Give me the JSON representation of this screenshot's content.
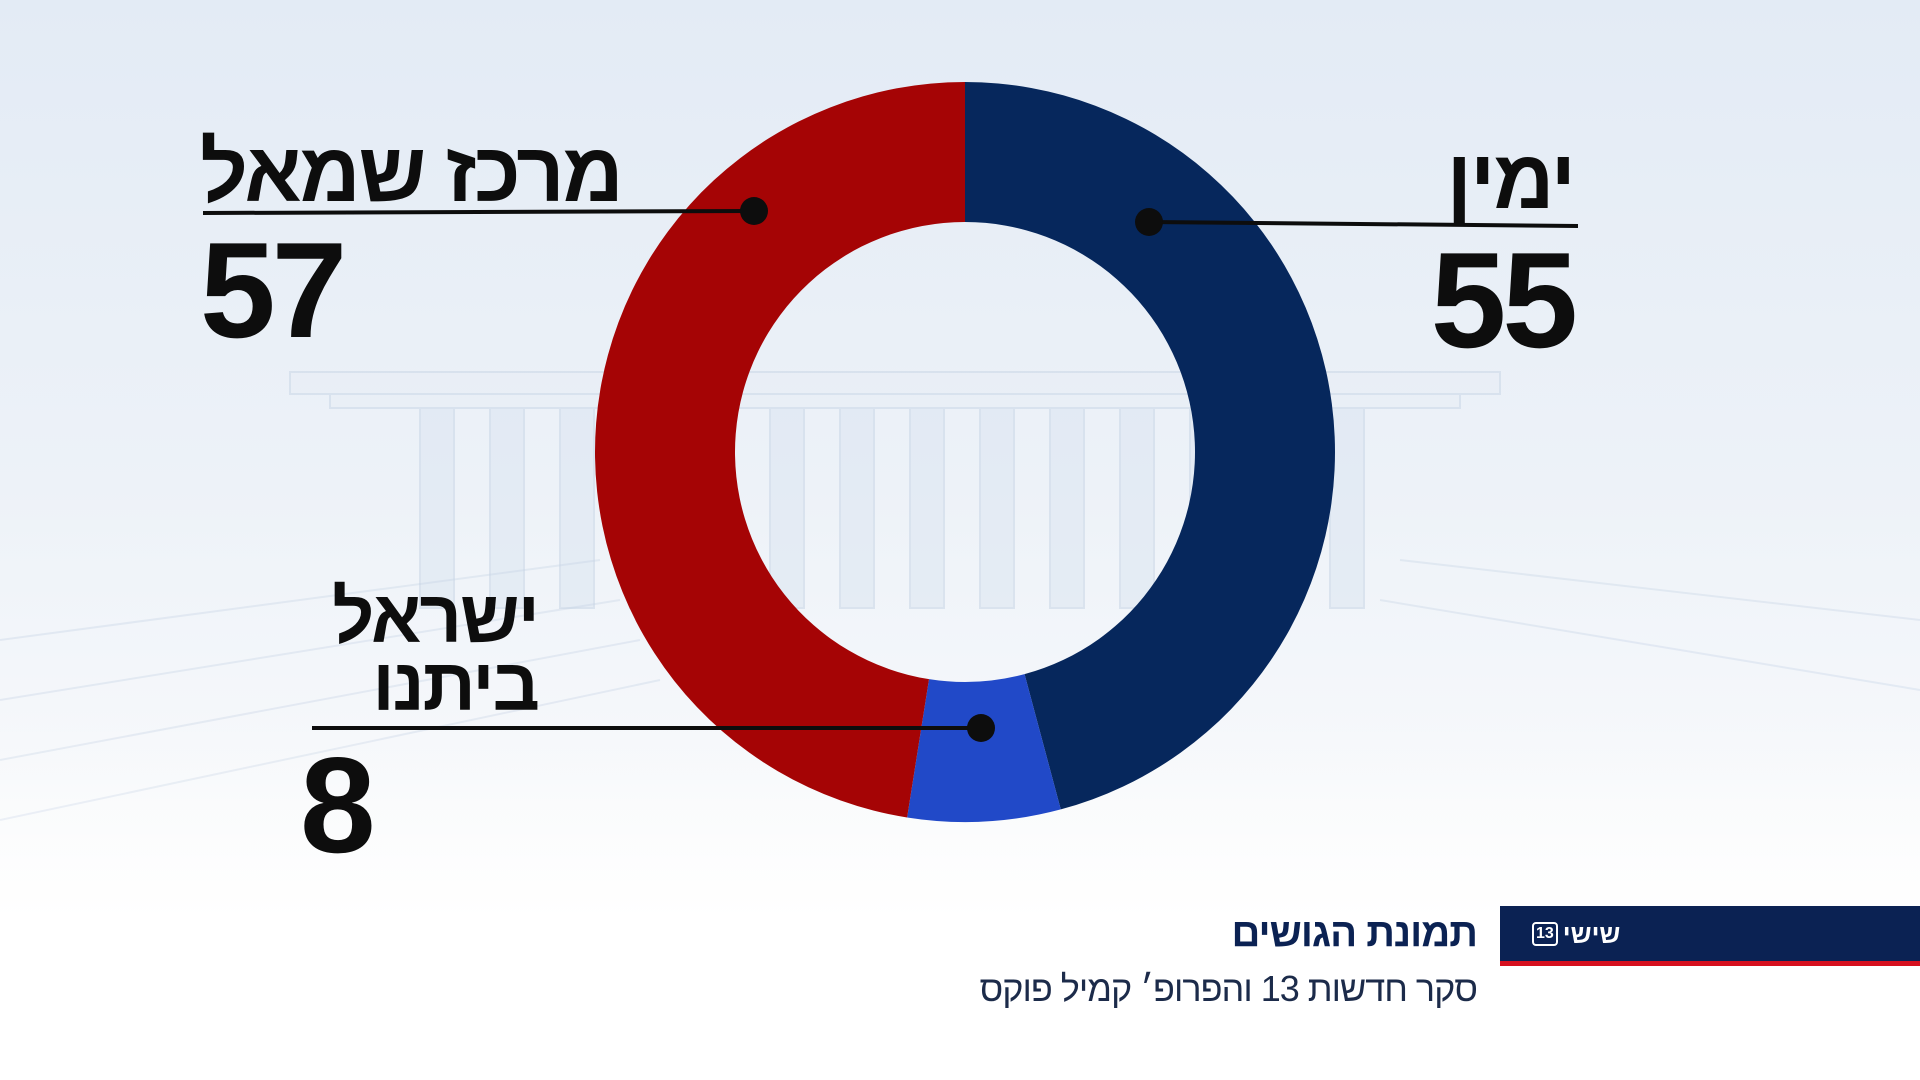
{
  "chart_data": {
    "type": "pie",
    "variant": "donut",
    "segments": [
      {
        "label": "ימין",
        "value": 55,
        "color": "#06275c"
      },
      {
        "label": "ישראל ביתנו",
        "label_lines": [
          "ישראל",
          "ביתנו"
        ],
        "value": 8,
        "color": "#2149c8"
      },
      {
        "label": "מרכז שמאל",
        "value": 57,
        "color": "#a50405"
      }
    ]
  },
  "footer": {
    "title": "תמונת הגושים",
    "subtitle": "סקר חדשות 13 והפרופ׳ קמיל פוקס",
    "channel_name": "שישי",
    "channel_number": "13",
    "bar_color": "#0b2253",
    "accent_color": "#d6101f"
  }
}
